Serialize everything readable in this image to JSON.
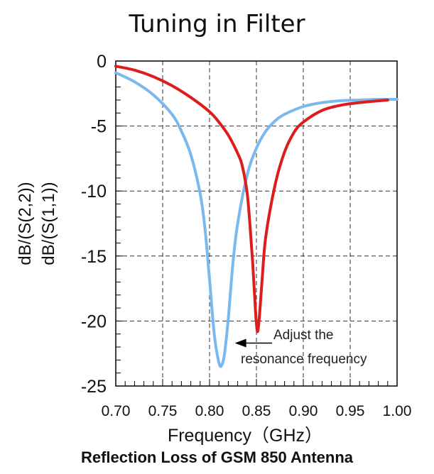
{
  "chart_data": {
    "type": "line",
    "title": "Tuning in Filter",
    "xlabel": "Frequency（GHz）",
    "ylabel_outer": "dB/(S(2,2))",
    "ylabel_inner": "dB/(S(1,1))",
    "caption": "Reflection Loss of GSM 850  Antenna",
    "xlim": [
      0.7,
      1.0
    ],
    "ylim": [
      -25,
      0
    ],
    "x_ticks": [
      "0.70",
      "0.75",
      "0.80",
      "0.85",
      "0.90",
      "0.95",
      "1.00"
    ],
    "y_ticks": [
      "0",
      "-5",
      "-10",
      "-15",
      "-20",
      "-25"
    ],
    "grid": true,
    "annotation": {
      "lines": [
        "Adjust the",
        "resonance frequency"
      ],
      "arrow_to": [
        0.827,
        -21.7
      ]
    },
    "series": [
      {
        "color": "#7ab8ee",
        "x": [
          0.7,
          0.72,
          0.74,
          0.76,
          0.77,
          0.78,
          0.79,
          0.795,
          0.8,
          0.805,
          0.81,
          0.813,
          0.816,
          0.82,
          0.825,
          0.83,
          0.84,
          0.85,
          0.86,
          0.87,
          0.88,
          0.9,
          0.92,
          0.94,
          0.96,
          0.98,
          1.0
        ],
        "y": [
          -0.9,
          -1.6,
          -2.6,
          -4.1,
          -5.4,
          -7.2,
          -10.2,
          -12.8,
          -16.8,
          -21.0,
          -23.2,
          -23.4,
          -22.5,
          -19.8,
          -15.5,
          -12.5,
          -8.8,
          -6.7,
          -5.4,
          -4.6,
          -4.1,
          -3.5,
          -3.2,
          -3.05,
          -3.0,
          -2.95,
          -2.95
        ]
      },
      {
        "color": "#dd1c1c",
        "x": [
          0.7,
          0.72,
          0.74,
          0.76,
          0.78,
          0.8,
          0.81,
          0.82,
          0.83,
          0.835,
          0.84,
          0.843,
          0.846,
          0.849,
          0.851,
          0.853,
          0.856,
          0.86,
          0.87,
          0.88,
          0.89,
          0.9,
          0.92,
          0.94,
          0.96,
          0.99
        ],
        "y": [
          -0.4,
          -0.7,
          -1.2,
          -1.9,
          -2.8,
          -3.9,
          -4.7,
          -5.7,
          -7.1,
          -8.1,
          -10.1,
          -12.5,
          -15.5,
          -19.2,
          -20.8,
          -19.8,
          -16.9,
          -13.5,
          -9.5,
          -7.0,
          -5.5,
          -4.7,
          -3.8,
          -3.4,
          -3.2,
          -3.0
        ]
      }
    ]
  }
}
